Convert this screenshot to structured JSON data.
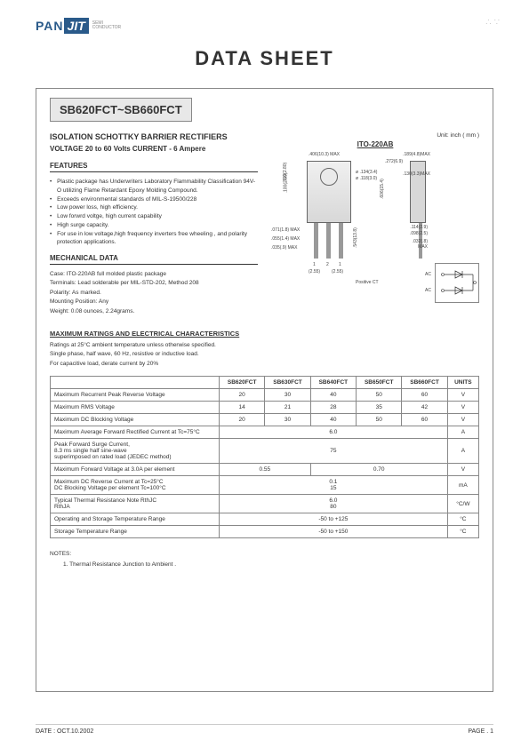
{
  "header": {
    "logo_left": "PAN",
    "logo_right": "JIT",
    "logo_sub1": "SEMI",
    "logo_sub2": "CONDUCTOR",
    "main_title": "DATA  SHEET",
    "part_range": "SB620FCT~SB660FCT"
  },
  "product": {
    "title": "ISOLATION SCHOTTKY BARRIER RECTIFIERS",
    "subtitle": "VOLTAGE  20 to 60 Volts    CURRENT - 6 Ampere",
    "unit_label": "Unit: inch ( mm )",
    "package_label": "ITO-220AB"
  },
  "sections": {
    "features": "FEATURES",
    "mechanical": "MECHANICAL DATA",
    "ratings": "MAXIMUM RATINGS AND ELECTRICAL CHARACTERISTICS"
  },
  "features": [
    "Plastic package has Underwriters Laboratory Flammability Classification 94V-O utilizing Flame Retardant Epoxy Molding Compound.",
    "Exceeds environmental standards of MIL-S-19500/228",
    "Low power loss, high efficiency.",
    "Low forwrd voltge, high current capability",
    "High surge capacity.",
    "For use in low voltage,high frequency inverters free wheeling , and polarity protection applications."
  ],
  "mechanical": {
    "case": "Case: ITO-220AB full molded plastic package",
    "terminals": "Terminals: Lead solderable per MIL-STD-202, Method 208",
    "polarity": "Polarity:  As marked.",
    "mounting": "Mounting Position: Any",
    "weight": "Weight: 0.08 ounces, 2.24grams."
  },
  "ratings_notes": {
    "line1": "Ratings at 25°C ambient temperature unless otherwise specified.",
    "line2": "Single phase, half wave, 60 Hz, resistive or inductive load.",
    "line3": "For capacitive load, derate current by 20%"
  },
  "table": {
    "columns": [
      "",
      "SB620FCT",
      "SB630FCT",
      "SB640FCT",
      "SB650FCT",
      "SB660FCT",
      "UNITS"
    ],
    "rows": [
      {
        "label": "Maximum Recurrent Peak Reverse Voltage",
        "vals": [
          "20",
          "30",
          "40",
          "50",
          "60"
        ],
        "unit": "V",
        "span": null
      },
      {
        "label": "Maximum RMS Voltage",
        "vals": [
          "14",
          "21",
          "28",
          "35",
          "42"
        ],
        "unit": "V",
        "span": null
      },
      {
        "label": "Maximum DC Blocking Voltage",
        "vals": [
          "20",
          "30",
          "40",
          "50",
          "60"
        ],
        "unit": "V",
        "span": null
      },
      {
        "label": "Maximum Average Forward Rectified Current at Tc=75°C",
        "vals": [
          "6.0"
        ],
        "unit": "A",
        "span": 5
      },
      {
        "label": "Peak Forward Surge Current,\n8.3 ms single half sine-wave\nsuperimposed on rated load (JEDEC method)",
        "vals": [
          "75"
        ],
        "unit": "A",
        "span": 5
      },
      {
        "label": "Maximum Forward Voltage at 3.0A per element",
        "vals": [
          "0.55",
          "0.70"
        ],
        "unit": "V",
        "span": "2-3"
      },
      {
        "label": "Maximum DC Reverse Current at Tc=25°C\nDC Blocking Voltage per element  Tc=100°C",
        "vals": [
          "0.1\n15"
        ],
        "unit": "mA",
        "span": 5
      },
      {
        "label": "Typical Thermal Resistance Note RthJC\n                                                        RthJA",
        "vals": [
          "6.0\n80"
        ],
        "unit": "°C/W",
        "span": 5
      },
      {
        "label": "Operating and Storage Temperature Range",
        "vals": [
          "-50 to +125"
        ],
        "unit": "°C",
        "span": 5
      },
      {
        "label": "Storage Temperature Range",
        "vals": [
          "-50 to +150"
        ],
        "unit": "°C",
        "span": 5
      }
    ]
  },
  "diagram_dims": {
    "d1": ".406(10.3) MAX",
    "d2": "ø .134(3.4)",
    "d3": "ø .118(3.0)",
    "d4": ".272(6.9)",
    "d5": ".110(2.80)",
    "d6": ".100(2.55)",
    "d7": ".606(15.4)",
    "d8": ".571(14.5)",
    "d9": ".071(1.8) MAX",
    "d10": ".055(1.4) MAX",
    "d11": ".035(.9) MAX",
    "d12": ".543(13.8)",
    "d13": ".504(12.8)",
    "d14": ".189(4.8)MAX",
    "d15": ".130(3.3)MAX",
    "d16": ".114(2.9)",
    "d17": ".098(2.5)",
    "d18": ".032(.8)",
    "d19": "MAX",
    "pin1": "1",
    "pin2": "2",
    "pin3": "1",
    "spacing1": "(2.55)",
    "spacing2": "(2.55)",
    "circuit_label": "Positive CT",
    "ac1": "AC",
    "ac2": "AC"
  },
  "notes": {
    "title": "NOTES:",
    "n1": "1. Thermal Resistance Junction to Ambient ."
  },
  "footer": {
    "date": "DATE : OCT.10.2002",
    "page": "PAGE .  1"
  },
  "colors": {
    "brand": "#2a5a8a",
    "border": "#888888",
    "text": "#333333",
    "grey_bg": "#e8e8e8"
  }
}
